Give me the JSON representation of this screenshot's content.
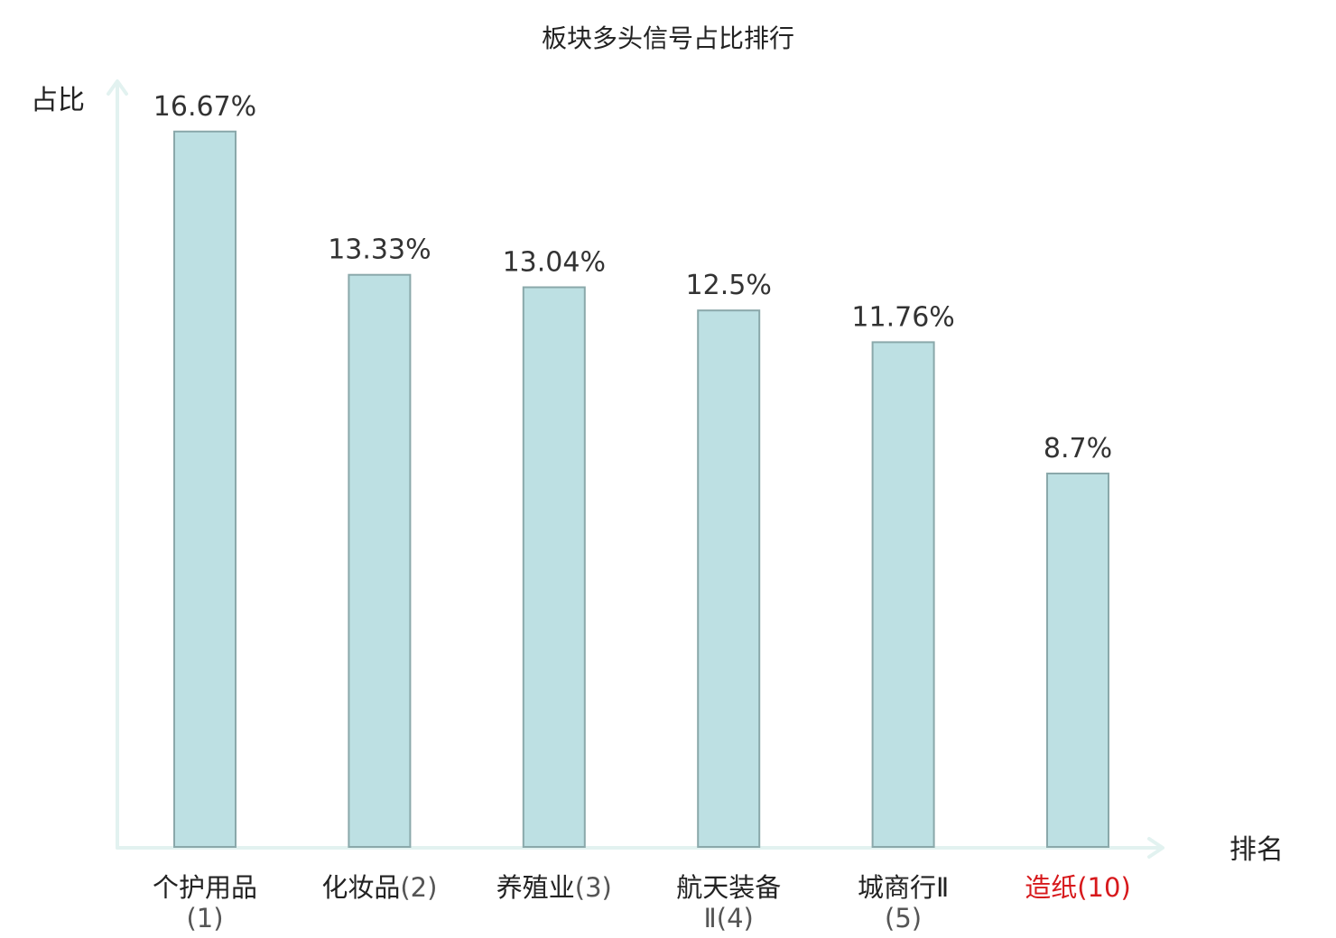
{
  "chart_data": {
    "type": "bar",
    "title": "板块多头信号占比排行",
    "ylabel": "占比",
    "xlabel": "排名",
    "ylim": [
      0,
      17.8
    ],
    "grid": false,
    "categories": [
      {
        "name": "个护用品",
        "rank": "(1)",
        "highlight": false
      },
      {
        "name": "化妆品",
        "rank": "(2)",
        "highlight": false
      },
      {
        "name": "养殖业",
        "rank": "(3)",
        "highlight": false
      },
      {
        "name": "航天装备",
        "rank": "Ⅱ(4)",
        "highlight": false
      },
      {
        "name": "城商行Ⅱ",
        "rank": "(5)",
        "highlight": false
      },
      {
        "name": "造纸",
        "rank": "(10)",
        "highlight": true
      }
    ],
    "values": [
      16.67,
      13.33,
      13.04,
      12.5,
      11.76,
      8.7
    ],
    "value_labels": [
      "16.67%",
      "13.33%",
      "13.04%",
      "12.5%",
      "11.76%",
      "8.7%"
    ]
  },
  "colors": {
    "bar_fill": "#bde0e3",
    "bar_stroke": "#8aa8aa",
    "axis": "#e2f2f0",
    "label_text": "#222222",
    "value_text": "#333333",
    "rank_text": "#555555",
    "highlight": "#d7191c"
  }
}
